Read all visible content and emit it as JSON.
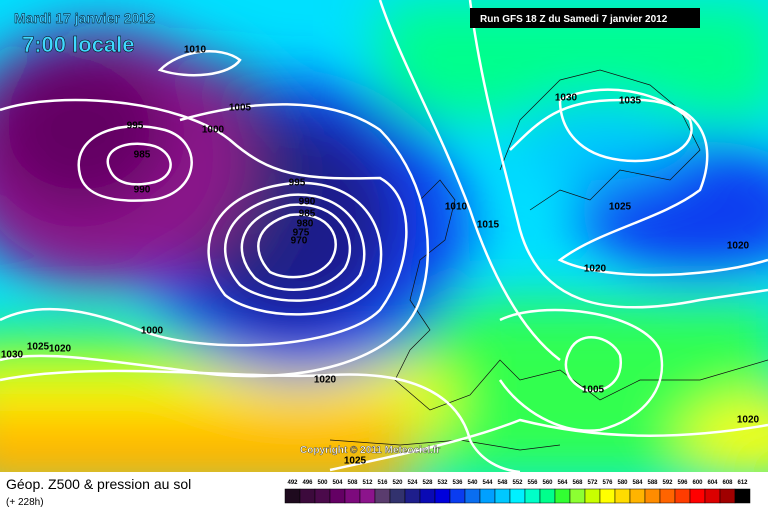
{
  "header": {
    "date": "Mardi 17 janvier 2012",
    "time": "7:00 locale",
    "run": "Run GFS 18 Z du Samedi 7 janvier 2012"
  },
  "isobar_labels": [
    "1010",
    "1005",
    "995",
    "1000",
    "985",
    "990",
    "995",
    "990",
    "985",
    "980",
    "975",
    "970",
    "1010",
    "1015",
    "1030",
    "1035",
    "1025",
    "1020",
    "1020",
    "1000",
    "1025",
    "1020",
    "1030",
    "1020",
    "1005",
    "1020",
    "1025"
  ],
  "copyright": "Copyright © 2011 Meteociel.fr",
  "legend": {
    "title": "Géop. Z500 & pression au sol",
    "subtitle": "(+ 228h)",
    "values": [
      492,
      496,
      500,
      504,
      508,
      512,
      516,
      520,
      524,
      528,
      532,
      536,
      540,
      544,
      548,
      552,
      556,
      560,
      564,
      568,
      572,
      576,
      580,
      584,
      588,
      592,
      596,
      600,
      604,
      608,
      612
    ],
    "colors": [
      "#1e0a1e",
      "#3c0a3c",
      "#4b0a4b",
      "#640064",
      "#7d0a7d",
      "#8c148c",
      "#5a3c6e",
      "#32326e",
      "#1e1e8c",
      "#0a0ab4",
      "#0000dc",
      "#0a3cf0",
      "#0a6ef0",
      "#00a0ff",
      "#00c8ff",
      "#00f0ff",
      "#00ffc8",
      "#00ff8c",
      "#32ff32",
      "#8cff32",
      "#c8ff00",
      "#ffff00",
      "#ffdc00",
      "#ffb400",
      "#ff8c00",
      "#ff6400",
      "#ff3c00",
      "#ff0000",
      "#dc0000",
      "#a00000",
      "#000000"
    ]
  }
}
